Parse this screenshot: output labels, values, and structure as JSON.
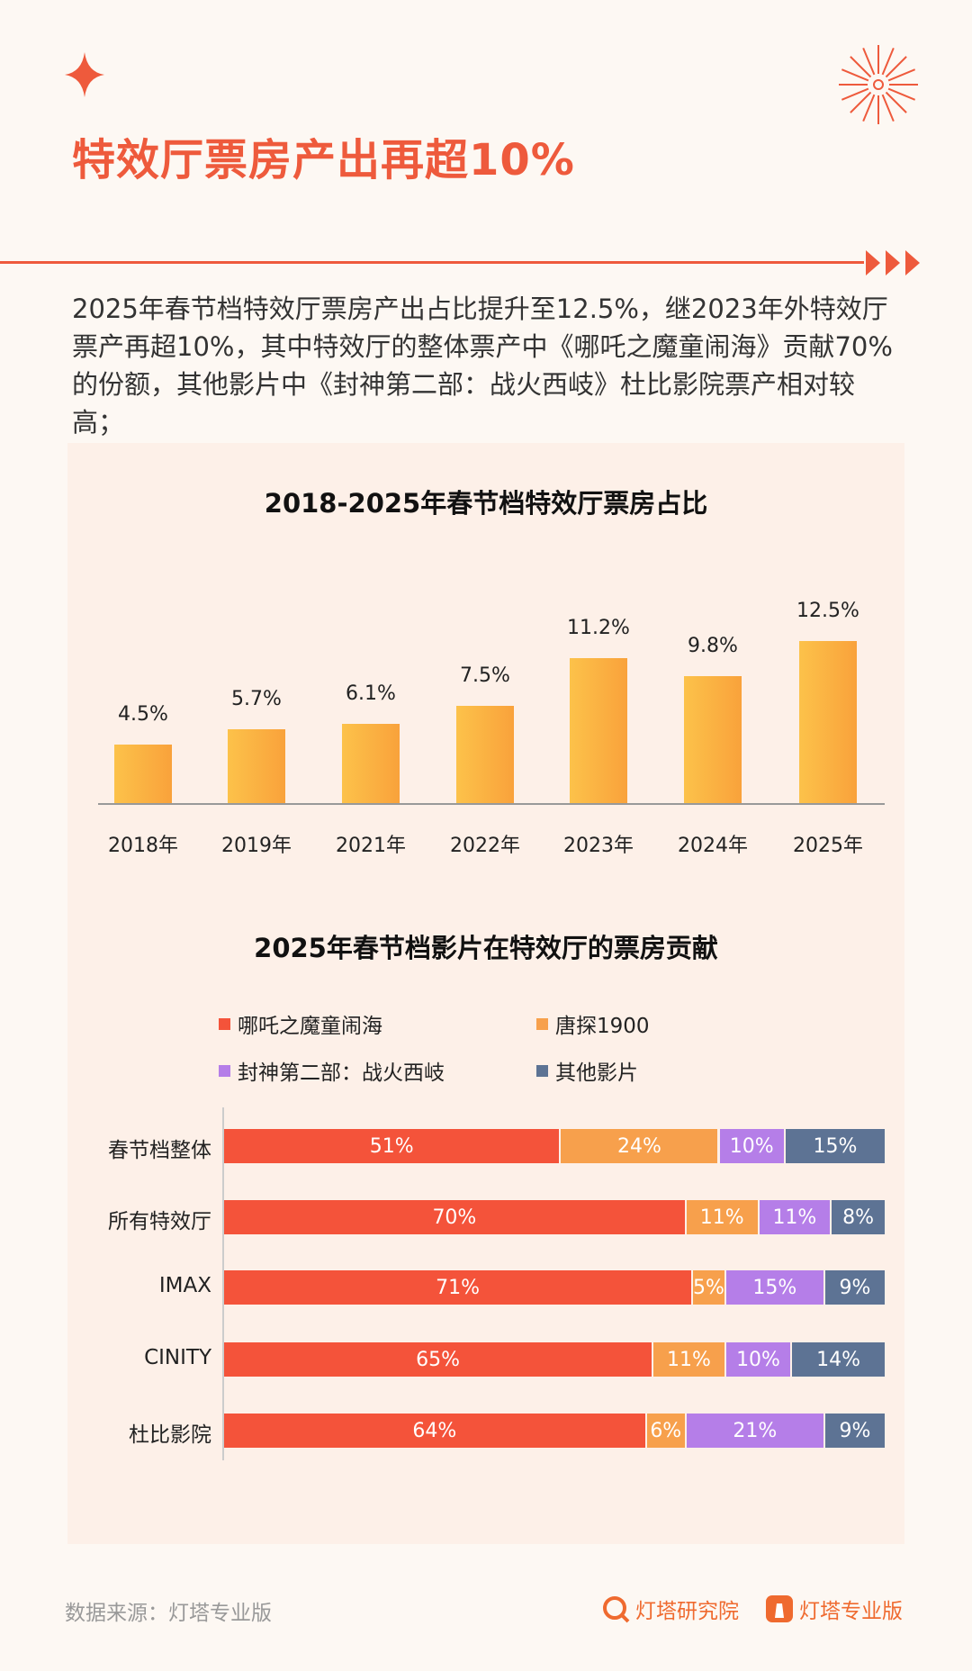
{
  "header": {
    "title": "特效厅票房产出再超10%",
    "accent": "#ee5a3c"
  },
  "intro": "2025年春节档特效厅票房产出占比提升至12.5%，继2023年外特效厅票产再超10%，其中特效厅的整体票产中《哪吒之魔童闹海》贡献70%的份额，其他影片中《封神第二部：战火西岐》杜比影院票产相对较高；",
  "chart_data": [
    {
      "type": "bar",
      "title": "2018-2025年春节档特效厅票房占比",
      "categories": [
        "2018年",
        "2019年",
        "2021年",
        "2022年",
        "2023年",
        "2024年",
        "2025年"
      ],
      "values": [
        4.5,
        5.7,
        6.1,
        7.5,
        11.2,
        9.8,
        12.5
      ],
      "labels": [
        "4.5%",
        "5.7%",
        "6.1%",
        "7.5%",
        "11.2%",
        "9.8%",
        "12.5%"
      ],
      "ylim": [
        0,
        12.5
      ],
      "grid": false,
      "color": "#fbb343"
    },
    {
      "type": "bar",
      "orientation": "horizontal-stacked",
      "title": "2025年春节档影片在特效厅的票房贡献",
      "categories": [
        "春节档整体",
        "所有特效厅",
        "IMAX",
        "CINITY",
        "杜比影院"
      ],
      "legend_position": "top",
      "series": [
        {
          "name": "哪吒之魔童闹海",
          "color": "#f4533a",
          "values": [
            51,
            70,
            71,
            65,
            64
          ]
        },
        {
          "name": "唐探1900",
          "color": "#f7a04c",
          "values": [
            24,
            11,
            5,
            11,
            6
          ]
        },
        {
          "name": "封神第二部：战火西岐",
          "color": "#b57ee8",
          "values": [
            10,
            11,
            15,
            10,
            21
          ]
        },
        {
          "name": "其他影片",
          "color": "#5d7394",
          "values": [
            15,
            8,
            9,
            14,
            9
          ]
        }
      ],
      "unit": "%"
    }
  ],
  "footer": {
    "source": "数据来源：灯塔专业版",
    "brands": [
      "灯塔研究院",
      "灯塔专业版"
    ]
  }
}
